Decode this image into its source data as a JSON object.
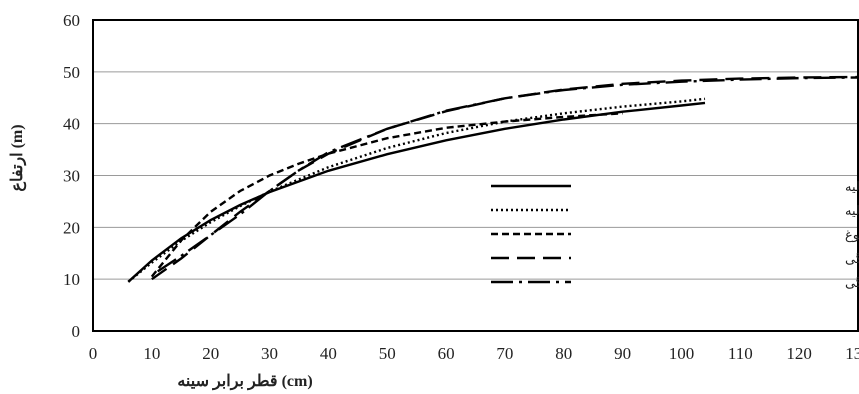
{
  "chart_data": {
    "type": "line",
    "xlabel": "قطر برابر سینه (cm)",
    "ylabel": "ارتفاع (m)",
    "xlim": [
      0,
      130
    ],
    "ylim": [
      0,
      60
    ],
    "xticks": [
      "0",
      "10",
      "20",
      "30",
      "40",
      "50",
      "60",
      "70",
      "80",
      "90",
      "100",
      "110",
      "120",
      "130"
    ],
    "yticks": [
      "0",
      "10",
      "20",
      "30",
      "40",
      "50",
      "60"
    ],
    "grid": "horizontal",
    "legend_position": "right-center",
    "series": [
      {
        "name": "مدل نسبی-مرحله اولیه",
        "dash": "solid",
        "color": "#000000",
        "x": [
          6,
          10,
          15,
          20,
          25,
          30,
          40,
          50,
          60,
          70,
          80,
          90,
          100,
          104
        ],
        "y": [
          9.5,
          13.6,
          17.9,
          21.4,
          24.3,
          26.8,
          30.9,
          34.1,
          36.8,
          39.0,
          40.8,
          42.3,
          43.5,
          44.0
        ]
      },
      {
        "name": "مدل ویبول-مرحله اولیه",
        "dash": "dotted",
        "color": "#000000",
        "x": [
          6,
          10,
          15,
          20,
          25,
          30,
          40,
          50,
          60,
          70,
          80,
          90,
          100,
          104
        ],
        "y": [
          9.5,
          13.2,
          17.4,
          21.0,
          24.1,
          26.9,
          31.6,
          35.3,
          38.2,
          40.4,
          42.0,
          43.3,
          44.3,
          44.8
        ]
      },
      {
        "name": "مدل تمایی اصلاح شده-مرحله بلوغ",
        "dash": "short-dash",
        "color": "#000000",
        "x": [
          10,
          15,
          20,
          25,
          30,
          35,
          40,
          50,
          60,
          70,
          80,
          90
        ],
        "y": [
          10.5,
          17.5,
          23.0,
          27.0,
          30.0,
          32.3,
          34.2,
          37.2,
          39.2,
          40.4,
          41.3,
          42.0
        ]
      },
      {
        "name": "مدل گومپرتز-مرحله پوسیدگی",
        "dash": "long-dash",
        "color": "#000000",
        "x": [
          10,
          15,
          20,
          25,
          30,
          35,
          40,
          50,
          60,
          70,
          80,
          90,
          100,
          110,
          120,
          130
        ],
        "y": [
          10.0,
          14.0,
          18.5,
          23.0,
          27.0,
          31.0,
          34.2,
          39.0,
          42.4,
          44.9,
          46.6,
          47.7,
          48.3,
          48.7,
          48.9,
          49.0
        ]
      },
      {
        "name": "مدل ریچارد-مرحله پوسیدگی",
        "dash": "dash-dot",
        "color": "#000000",
        "x": [
          11,
          15,
          20,
          25,
          30,
          35,
          40,
          50,
          60,
          70,
          80,
          90,
          100,
          110,
          120,
          130
        ],
        "y": [
          11.5,
          14.5,
          18.5,
          22.5,
          27.0,
          31.0,
          34.5,
          39.0,
          42.5,
          44.9,
          46.5,
          47.5,
          48.1,
          48.5,
          48.8,
          48.9
        ]
      }
    ]
  }
}
